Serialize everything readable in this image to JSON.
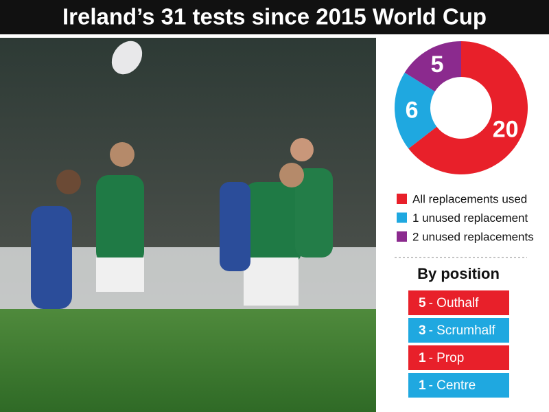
{
  "chart_data": {
    "type": "donut",
    "title": "Ireland’s 31 tests since 2015 World Cup",
    "categories": [
      "All replacements used",
      "1 unused replacement",
      "2 unused replacements"
    ],
    "values": [
      20,
      6,
      5
    ],
    "colors": [
      "#e8202a",
      "#1fa8e0",
      "#8b2a8e"
    ]
  },
  "by_position": {
    "title": "By position",
    "items": [
      {
        "count": 5,
        "label": "- Outhalf",
        "color": "#e8202a"
      },
      {
        "count": 3,
        "label": "- Scrumhalf",
        "color": "#1fa8e0"
      },
      {
        "count": 1,
        "label": "- Prop",
        "color": "#e8202a"
      },
      {
        "count": 1,
        "label": "- Centre",
        "color": "#1fa8e0"
      }
    ]
  }
}
